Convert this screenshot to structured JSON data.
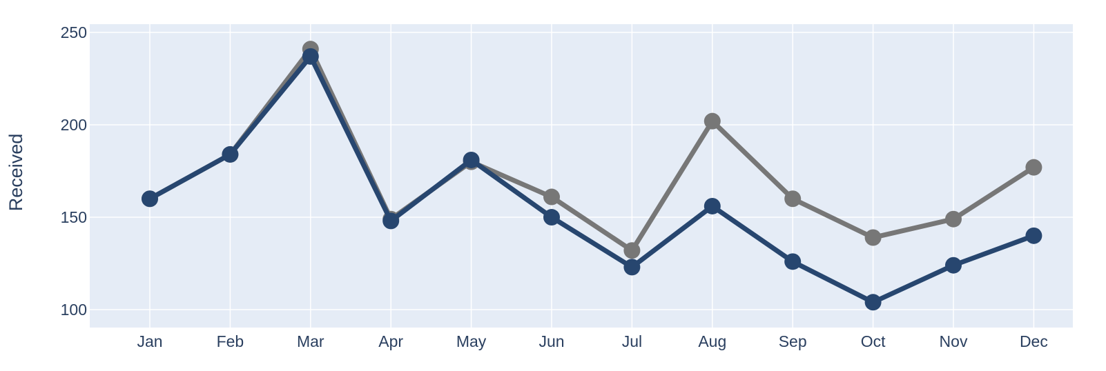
{
  "chart_data": {
    "type": "line",
    "title": "",
    "xlabel": "",
    "ylabel": "Received",
    "categories": [
      "Jan",
      "Feb",
      "Mar",
      "Apr",
      "May",
      "Jun",
      "Jul",
      "Aug",
      "Sep",
      "Oct",
      "Nov",
      "Dec"
    ],
    "series": [
      {
        "color": "#777777",
        "values": [
          160,
          184,
          241,
          149,
          180,
          161,
          132,
          202,
          160,
          139,
          149,
          177
        ]
      },
      {
        "color": "#27466f",
        "values": [
          160,
          184,
          237,
          148,
          181,
          150,
          123,
          156,
          126,
          104,
          124,
          140
        ]
      }
    ],
    "ylim": [
      90.3,
      254.5
    ],
    "yticks": [
      100,
      150,
      200,
      250
    ],
    "grid": true,
    "legend": "none",
    "colors": {
      "plot_background": "#e5ecf6",
      "grid": "#ffffff",
      "text": "#2a3f5f"
    }
  }
}
